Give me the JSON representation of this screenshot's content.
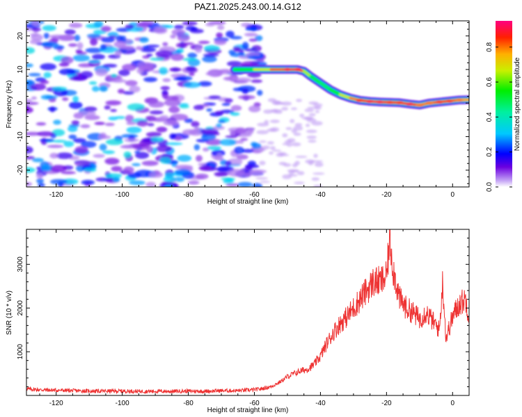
{
  "chart_data": [
    {
      "type": "heatmap",
      "title": "PAZ1.2025.243.00.14.G12",
      "xlabel": "Height of straight line (km)",
      "ylabel": "Frequency (Hz)",
      "xlim": [
        -129,
        5
      ],
      "ylim": [
        -25,
        24.5
      ],
      "x_ticks": [
        -120,
        -100,
        -80,
        -60,
        -40,
        -20,
        0
      ],
      "x_tick_labels": [
        "-120",
        "-100",
        "-80",
        "-60",
        "-40",
        "-20",
        "0"
      ],
      "y_ticks": [
        -20,
        -10,
        0,
        10,
        20
      ],
      "y_tick_labels": [
        "-20",
        "-10",
        "0",
        "10",
        "20"
      ],
      "colorbar": {
        "label": "Normalized spectral amplitude",
        "range": [
          0.0,
          0.95
        ],
        "ticks": [
          0.0,
          0.2,
          0.4,
          0.6,
          0.8
        ],
        "tick_labels": [
          "0.0",
          "0.2",
          "0.4",
          "0.6",
          "0.8"
        ]
      },
      "ridge_track": {
        "x": [
          -66,
          -60,
          -55,
          -50,
          -47,
          -45,
          -43,
          -40,
          -37,
          -34,
          -31,
          -28,
          -25,
          -22,
          -19,
          -16,
          -13,
          -10,
          -7,
          -4,
          -1,
          2,
          5
        ],
        "frequency": [
          10,
          10,
          10,
          10,
          10,
          9.5,
          8,
          6,
          4,
          2.5,
          1.5,
          0.8,
          0.5,
          0.3,
          0.2,
          0.1,
          -0.3,
          -0.6,
          0,
          0.3,
          0.6,
          0.9,
          1.0
        ],
        "amplitude": [
          0.45,
          0.6,
          0.75,
          0.9,
          0.9,
          0.75,
          0.55,
          0.45,
          0.5,
          0.6,
          0.75,
          0.85,
          0.9,
          0.9,
          0.85,
          0.85,
          0.9,
          0.8,
          0.8,
          0.85,
          0.85,
          0.8,
          0.75
        ]
      },
      "noise_region": {
        "x_range": [
          -129,
          -58
        ],
        "amplitude_range": [
          0.05,
          0.35
        ]
      }
    },
    {
      "type": "line",
      "title": "",
      "xlabel": "Height of straight line (km)",
      "ylabel": "SNR (10 * v/v)",
      "xlim": [
        -129,
        5
      ],
      "ylim": [
        0,
        3800
      ],
      "x_ticks": [
        -120,
        -100,
        -80,
        -60,
        -40,
        -20,
        0
      ],
      "x_tick_labels": [
        "-120",
        "-100",
        "-80",
        "-60",
        "-40",
        "-20",
        "0"
      ],
      "y_ticks": [
        1000,
        2000,
        3000
      ],
      "y_tick_labels": [
        "1000",
        "2000",
        "3000"
      ],
      "series": [
        {
          "name": "SNR",
          "color": "#ee3333",
          "x": [
            -129,
            -125,
            -120,
            -115,
            -110,
            -105,
            -100,
            -95,
            -90,
            -85,
            -80,
            -75,
            -70,
            -65,
            -60,
            -58,
            -55,
            -52,
            -50,
            -48,
            -46,
            -44,
            -42,
            -40,
            -38,
            -36,
            -34,
            -32,
            -30,
            -28,
            -26,
            -24,
            -22,
            -20,
            -19,
            -18,
            -16,
            -14,
            -12,
            -10,
            -8,
            -6,
            -4,
            -3,
            -2,
            0,
            2,
            4,
            5
          ],
          "values": [
            150,
            130,
            120,
            110,
            100,
            100,
            100,
            95,
            95,
            95,
            100,
            95,
            110,
            110,
            130,
            150,
            200,
            320,
            430,
            500,
            560,
            600,
            700,
            900,
            1200,
            1450,
            1650,
            1800,
            2000,
            2200,
            2400,
            2600,
            2600,
            2700,
            3600,
            2900,
            2200,
            2000,
            1900,
            1750,
            1900,
            1700,
            1500,
            2600,
            1300,
            1800,
            2100,
            2200,
            1800
          ]
        }
      ]
    }
  ],
  "colors": {
    "line": "#ee3333",
    "axis": "#000000",
    "background": "#ffffff"
  }
}
